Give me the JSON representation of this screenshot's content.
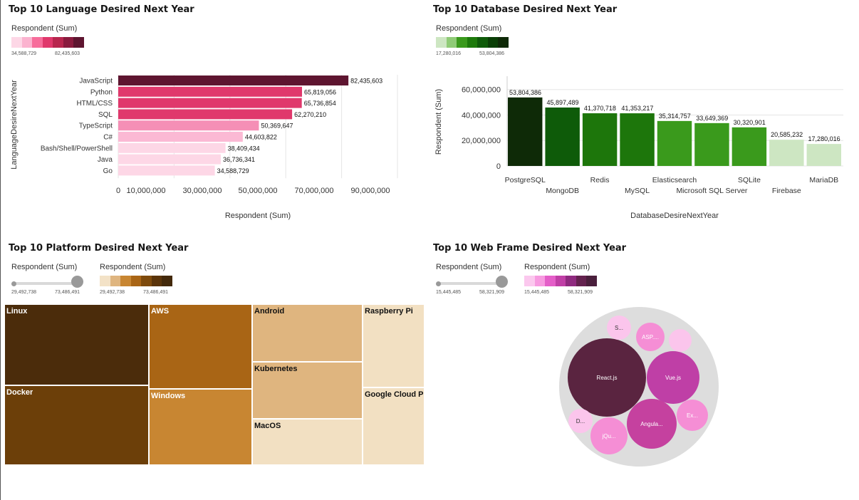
{
  "chart_data": [
    {
      "type": "bar",
      "orientation": "horizontal",
      "title": "Top 10 Language Desired Next Year",
      "xlabel": "Respondent (Sum)",
      "ylabel": "LanguageDesireNextYear",
      "legend_title": "Respondent (Sum)",
      "legend_min": "34,588,729",
      "legend_max": "82,435,603",
      "categories": [
        "JavaScript",
        "Python",
        "HTML/CSS",
        "SQL",
        "TypeScript",
        "C#",
        "Bash/Shell/PowerShell",
        "Java",
        "Go"
      ],
      "values": [
        82435603,
        65819056,
        65736854,
        62270210,
        50369647,
        44603822,
        38409434,
        36736341,
        34588729
      ],
      "value_labels": [
        "82,435,603",
        "65,819,056",
        "65,736,854",
        "62,270,210",
        "50,369,647",
        "44,603,822",
        "38,409,434",
        "36,736,341",
        "34,588,729"
      ],
      "ticks": [
        "0",
        "10,000,000",
        "30,000,000",
        "50,000,000",
        "70,000,000",
        "90,000,000"
      ],
      "xlim": [
        0,
        100000000
      ],
      "colors": [
        "#5e1530",
        "#e0386c",
        "#e0386c",
        "#e0386c",
        "#f58fb6",
        "#fbb9d4",
        "#fdd7e6",
        "#fdd7e6",
        "#fdd7e6"
      ],
      "legend_colors": [
        "#fdd7e6",
        "#fbb3cf",
        "#f76d9b",
        "#e0386c",
        "#b8264e",
        "#8a1b3e",
        "#5e1530"
      ]
    },
    {
      "type": "bar",
      "orientation": "vertical",
      "title": "Top 10 Database Desired Next Year",
      "xlabel": "DatabaseDesireNextYear",
      "ylabel": "Respondent (Sum)",
      "legend_title": "Respondent (Sum)",
      "legend_min": "17,280,016",
      "legend_max": "53,804,386",
      "categories": [
        "PostgreSQL",
        "MongoDB",
        "Redis",
        "MySQL",
        "Elasticsearch",
        "Microsoft SQL Server",
        "SQLite",
        "Firebase",
        "MariaDB"
      ],
      "values": [
        53804386,
        45897489,
        41370718,
        41353217,
        35314757,
        33649369,
        30320901,
        20585232,
        17280016
      ],
      "value_labels": [
        "53,804,386",
        "45,897,489",
        "41,370,718",
        "41,353,217",
        "35,314,757",
        "33,649,369",
        "30,320,901",
        "20,585,232",
        "17,280,016"
      ],
      "ticks": [
        "0",
        "20,000,000",
        "40,000,000",
        "60,000,000"
      ],
      "ylim": [
        0,
        66000000
      ],
      "colors": [
        "#0e2a07",
        "#0e5b09",
        "#1d760b",
        "#1d760b",
        "#3a9a1c",
        "#3a9a1c",
        "#3a9a1c",
        "#cde6c2",
        "#cde6c2"
      ],
      "legend_colors": [
        "#cde6c2",
        "#8fcb76",
        "#3a9a1c",
        "#1d7a0b",
        "#0e5b09",
        "#0a3f06",
        "#0e2a07"
      ]
    },
    {
      "type": "treemap",
      "title": "Top 10 Platform Desired Next Year",
      "size_legend_title": "Respondent (Sum)",
      "color_legend_title": "Respondent (Sum)",
      "legend_min": "29,492,738",
      "legend_max": "73,486,491",
      "legend_colors": [
        "#f3e2c7",
        "#dfb57f",
        "#c88632",
        "#a96515",
        "#7e4a0c",
        "#5a340a",
        "#43290b"
      ],
      "items": [
        {
          "label": "Linux",
          "color": "#4b2c0b",
          "text_color": "#ffffff"
        },
        {
          "label": "Docker",
          "color": "#6c3f09",
          "text_color": "#ffffff"
        },
        {
          "label": "AWS",
          "color": "#a96515",
          "text_color": "#ffffff"
        },
        {
          "label": "Windows",
          "color": "#c88632",
          "text_color": "#ffffff"
        },
        {
          "label": "Android",
          "color": "#dfb57f",
          "text_color": "#111111"
        },
        {
          "label": "Kubernetes",
          "color": "#dfb57f",
          "text_color": "#111111"
        },
        {
          "label": "MacOS",
          "color": "#f2e0c2",
          "text_color": "#111111"
        },
        {
          "label": "Raspberry Pi",
          "color": "#f2e0c2",
          "text_color": "#111111"
        },
        {
          "label": "Google Cloud P",
          "color": "#f2e0c2",
          "text_color": "#111111"
        }
      ]
    },
    {
      "type": "bubble",
      "title": "Top 10 Web Frame Desired Next Year",
      "size_legend_title": "Respondent (Sum)",
      "color_legend_title": "Respondent (Sum)",
      "legend_min": "15,445,485",
      "legend_max": "58,321,909",
      "legend_colors": [
        "#fbc8ee",
        "#f79ae0",
        "#e45ec8",
        "#c03fa6",
        "#8f2a7f",
        "#64224f",
        "#4a1f3c"
      ],
      "items": [
        {
          "label": "React.js",
          "color": "#5a2440"
        },
        {
          "label": "Vue.js",
          "color": "#bf3fa6"
        },
        {
          "label": "Angula...",
          "color": "#c5419f"
        },
        {
          "label": "ASP....",
          "color": "#f58ed5"
        },
        {
          "label": "Ex...",
          "color": "#f58ed5"
        },
        {
          "label": "jQu...",
          "color": "#f58ed5"
        },
        {
          "label": "D...",
          "color": "#fbc5ec"
        },
        {
          "label": "S...",
          "color": "#fbc5ec"
        },
        {
          "label": "",
          "color": "#fbc5ec"
        }
      ]
    }
  ]
}
